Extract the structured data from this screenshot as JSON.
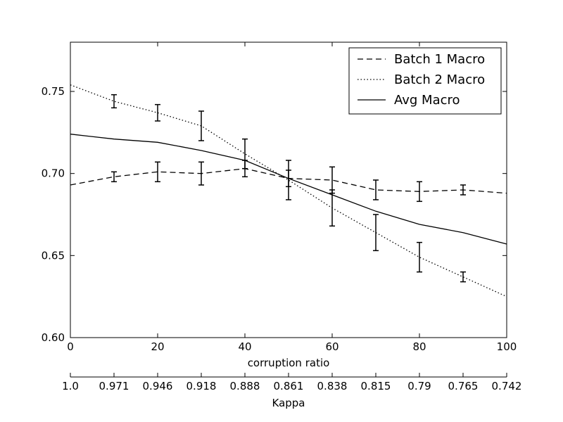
{
  "chart_data": {
    "type": "line",
    "xlabel": "corruption ratio",
    "secondary_xlabel": "Kappa",
    "ylabel": "",
    "xlim": [
      0,
      100
    ],
    "ylim": [
      0.6,
      0.78
    ],
    "x_ticks": [
      0,
      20,
      40,
      60,
      80,
      100
    ],
    "x_tick_labels": [
      "0",
      "20",
      "40",
      "60",
      "80",
      "100"
    ],
    "y_ticks": [
      0.6,
      0.65,
      0.7,
      0.75
    ],
    "y_tick_labels": [
      "0.60",
      "0.65",
      "0.70",
      "0.75"
    ],
    "secondary_x_ticks": [
      0,
      10,
      20,
      30,
      40,
      50,
      60,
      70,
      80,
      90,
      100
    ],
    "secondary_x_tick_labels": [
      "1.0",
      "0.971",
      "0.946",
      "0.918",
      "0.888",
      "0.861",
      "0.838",
      "0.815",
      "0.79",
      "0.765",
      "0.742"
    ],
    "grid": false,
    "legend_position": "top-right",
    "x": [
      0,
      10,
      20,
      30,
      40,
      50,
      60,
      70,
      80,
      90,
      100
    ],
    "series": [
      {
        "name": "Batch 1 Macro",
        "style": "dashed",
        "values": [
          0.693,
          0.698,
          0.701,
          0.7,
          0.703,
          0.697,
          0.696,
          0.69,
          0.689,
          0.69,
          0.688
        ],
        "error_bars": [
          null,
          0.003,
          0.006,
          0.007,
          0.005,
          0.005,
          0.008,
          0.006,
          0.006,
          0.003,
          null
        ]
      },
      {
        "name": "Batch 2 Macro",
        "style": "dotted",
        "values": [
          0.754,
          0.744,
          0.737,
          0.729,
          0.712,
          0.696,
          0.679,
          0.664,
          0.649,
          0.637,
          0.625
        ],
        "error_bars": [
          null,
          0.004,
          0.005,
          0.009,
          0.009,
          0.012,
          0.011,
          0.011,
          0.009,
          0.003,
          null
        ]
      },
      {
        "name": "Avg Macro",
        "style": "solid",
        "values": [
          0.724,
          0.721,
          0.719,
          0.714,
          0.708,
          0.697,
          0.687,
          0.677,
          0.669,
          0.664,
          0.657
        ],
        "error_bars": []
      }
    ]
  }
}
